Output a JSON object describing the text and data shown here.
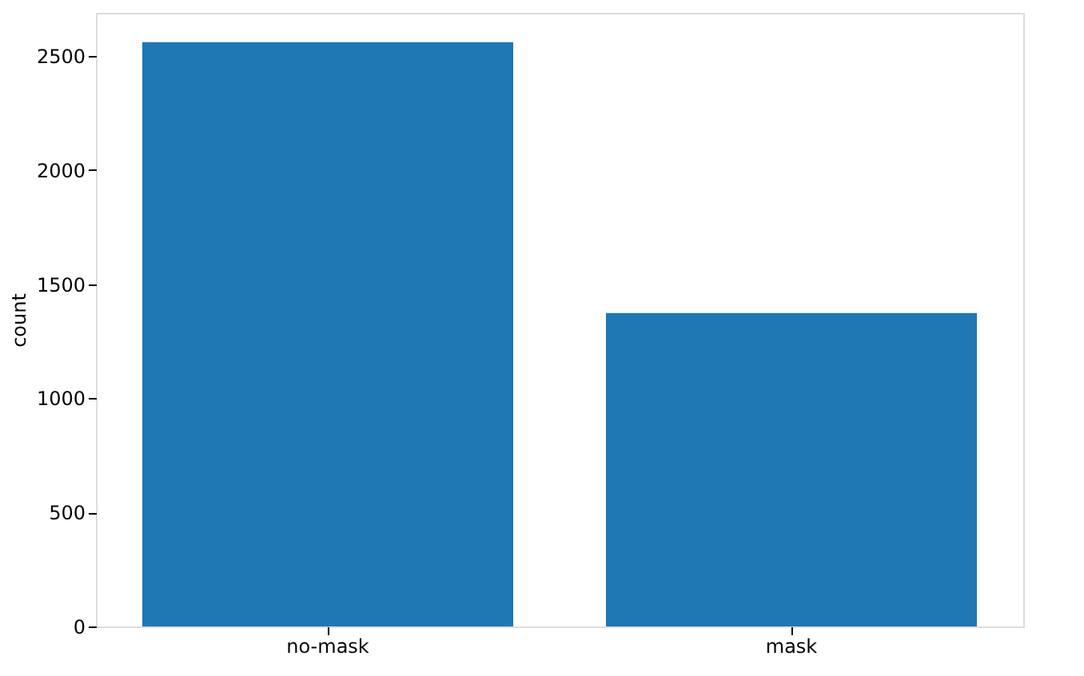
{
  "chart_data": {
    "type": "bar",
    "ylabel": "count",
    "categories": [
      "no-mask",
      "mask"
    ],
    "values": [
      2561,
      1374
    ],
    "color": "#1f77b4",
    "ylim": [
      0,
      2690
    ],
    "yticks": [
      0,
      500,
      1000,
      1500,
      2000,
      2500
    ],
    "grid": false
  }
}
